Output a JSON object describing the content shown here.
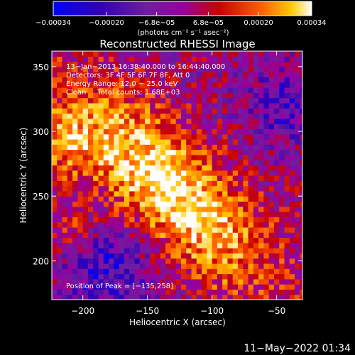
{
  "chart_data": {
    "type": "heatmap",
    "title": "Reconstructed RHESSI Image",
    "xlabel": "Heliocentric X (arcsec)",
    "ylabel": "Heliocentric Y (arcsec)",
    "xlim": [
      -224,
      -30
    ],
    "ylim": [
      170,
      362
    ],
    "x_ticks": [
      -200,
      -150,
      -100,
      -50
    ],
    "x_tick_labels": [
      "−200",
      "−150",
      "−100",
      "−50"
    ],
    "y_ticks": [
      200,
      250,
      300,
      350
    ],
    "y_tick_labels": [
      "200",
      "250",
      "300",
      "350"
    ],
    "colorbar": {
      "range": [
        -0.00034,
        0.00034
      ],
      "tick_values": [
        -0.00034,
        -0.0002,
        -6.8e-05,
        6.8e-05,
        0.0002,
        0.00034
      ],
      "tick_labels": [
        "−0.00034",
        "−0.00020",
        "−6.8e−05",
        "6.8e−05",
        "0.00020",
        "0.00034"
      ],
      "unit_label": "(photons cm⁻² s⁻¹ asec⁻²)"
    },
    "info_lines": [
      "13−Jan−2013 16:38:40.000 to 16:44:40.000",
      "Detectors: 3F 4F 5F 6F 7F 8F, Att 0",
      "Energy Range: 12.0 − 25.0 keV",
      "Clean     Total counts: 1.68E+03"
    ],
    "peak_text": "Position of Peak = [−135,258]",
    "peak": [
      -135,
      258
    ],
    "grid": false,
    "legend": "colorbar-top"
  },
  "timestamp": "11−May−2022 01:34",
  "colors": {
    "background": "#000000",
    "text": "#ffffff",
    "colormap": [
      "#0000ff",
      "#3200b4",
      "#6e1ea0",
      "#9600a0",
      "#c80000",
      "#ff5a00",
      "#ffc800",
      "#ffffff"
    ]
  }
}
